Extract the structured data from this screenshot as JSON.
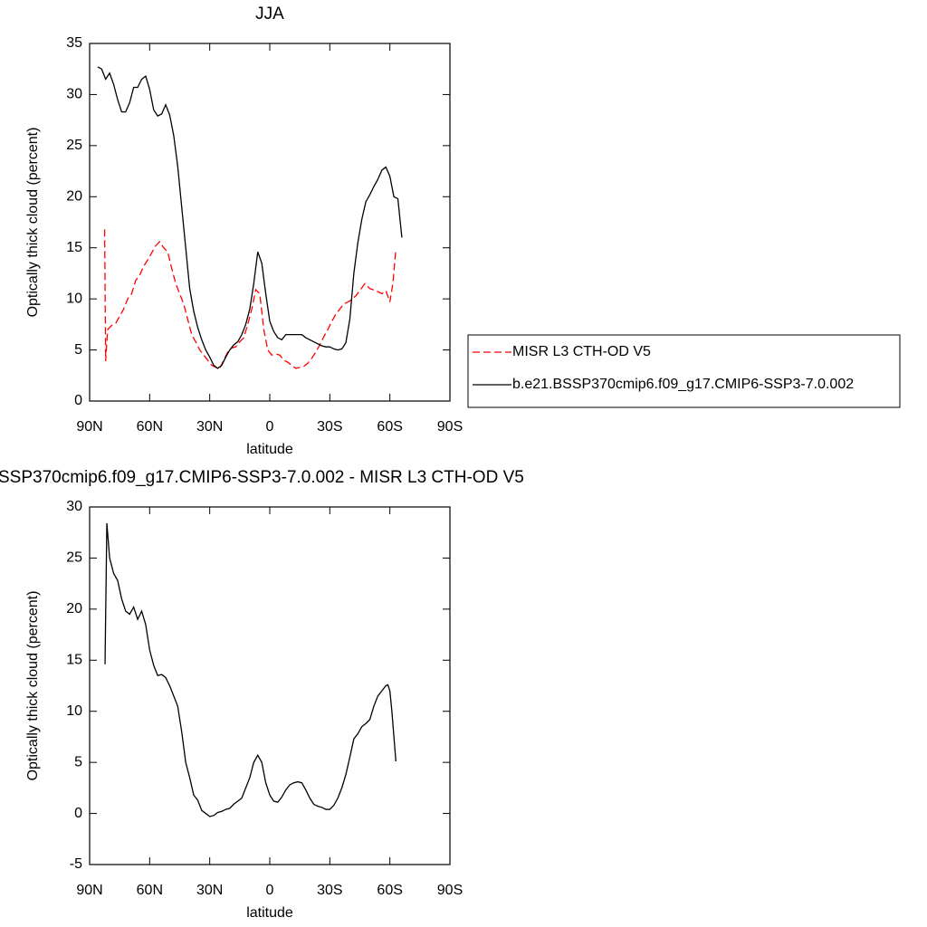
{
  "chart_data": [
    {
      "type": "line",
      "title": "JJA",
      "x_label": "latitude",
      "y_label": "Optically thick cloud (percent)",
      "xlim": [
        90,
        -90
      ],
      "xticks": [
        {
          "value": 90,
          "label": "90N"
        },
        {
          "value": 60,
          "label": "60N"
        },
        {
          "value": 30,
          "label": "30N"
        },
        0,
        {
          "value": -30,
          "label": "30S"
        },
        {
          "value": -60,
          "label": "60S"
        },
        {
          "value": -90,
          "label": "90S"
        }
      ],
      "ylim": [
        0,
        35
      ],
      "yticks": [
        0,
        5,
        10,
        15,
        20,
        25,
        30,
        35
      ],
      "legend": "right",
      "series": [
        {
          "name": "MISR L3 CTH-OD V5",
          "color": "#ff0000",
          "dash": true,
          "x": [
            82.5,
            82,
            81,
            79,
            77,
            75,
            73,
            71,
            69,
            67,
            65,
            63,
            61,
            59,
            57,
            55,
            53,
            51,
            49,
            47,
            45,
            43,
            41,
            39,
            37,
            35,
            33,
            31,
            29,
            27,
            25,
            23,
            21,
            19,
            17,
            15,
            13,
            11,
            9,
            7,
            5,
            3,
            1,
            -1,
            -3,
            -5,
            -7,
            -9,
            -11,
            -13,
            -15,
            -17,
            -19,
            -21,
            -23,
            -25,
            -27,
            -29,
            -31,
            -33,
            -35,
            -37,
            -40,
            -43,
            -45,
            -47.5,
            -50,
            -53,
            -56,
            -58,
            -60,
            -61.5,
            -63
          ],
          "values": [
            16.8,
            3.9,
            7.0,
            7.4,
            7.6,
            8.3,
            9.0,
            10.0,
            10.5,
            11.8,
            12.3,
            13.2,
            13.8,
            14.5,
            15.2,
            15.6,
            15.0,
            14.6,
            13.0,
            11.5,
            10.5,
            9.5,
            8.0,
            6.5,
            5.8,
            5.0,
            4.5,
            4.0,
            3.5,
            3.3,
            3.2,
            4.0,
            4.8,
            5.2,
            5.3,
            5.8,
            6.2,
            7.5,
            9.0,
            10.9,
            10.5,
            7.0,
            5.0,
            4.5,
            4.6,
            4.5,
            4.0,
            3.8,
            3.5,
            3.2,
            3.3,
            3.4,
            3.7,
            4.2,
            4.8,
            5.5,
            6.3,
            7.0,
            7.8,
            8.5,
            9.0,
            9.5,
            9.8,
            10.3,
            10.8,
            11.5,
            11.0,
            10.8,
            10.5,
            10.8,
            9.7,
            11.5,
            14.9
          ]
        },
        {
          "name": "b.e21.BSSP370cmip6.f09_g17.CMIP6-SSP3-7.0.002",
          "color": "#000000",
          "dash": false,
          "x": [
            86,
            84,
            82,
            80,
            78,
            76,
            74,
            72,
            70,
            68,
            66,
            64,
            62,
            60,
            58,
            56,
            54,
            52,
            50,
            48,
            46,
            44,
            42,
            40,
            38,
            36,
            34,
            32,
            30,
            28,
            26,
            24,
            22,
            20,
            18,
            16,
            14,
            12,
            10,
            8,
            6,
            4,
            2,
            0,
            -2,
            -4,
            -6,
            -8,
            -10,
            -12,
            -14,
            -16,
            -18,
            -20,
            -22,
            -24,
            -26,
            -28,
            -30,
            -32,
            -34,
            -36,
            -38,
            -40,
            -42,
            -44,
            -46,
            -48,
            -50,
            -52,
            -54,
            -56,
            -58,
            -60,
            -62,
            -64,
            -66
          ],
          "values": [
            32.7,
            32.5,
            31.5,
            32.1,
            31.0,
            29.5,
            28.3,
            28.3,
            29.2,
            30.7,
            30.7,
            31.5,
            31.8,
            30.5,
            28.5,
            27.9,
            28.1,
            29.0,
            28.0,
            26.0,
            23.0,
            19.0,
            15.0,
            11.0,
            8.8,
            7.2,
            6.0,
            5.0,
            4.3,
            3.5,
            3.2,
            3.5,
            4.3,
            5.0,
            5.5,
            5.8,
            6.5,
            7.5,
            9.0,
            11.5,
            14.6,
            13.5,
            10.5,
            7.8,
            6.8,
            6.2,
            6.0,
            6.5,
            6.5,
            6.5,
            6.5,
            6.5,
            6.2,
            6.0,
            5.8,
            5.6,
            5.4,
            5.3,
            5.3,
            5.1,
            5.0,
            5.1,
            5.7,
            8.0,
            12.5,
            15.5,
            17.8,
            19.5,
            20.2,
            21.0,
            21.7,
            22.6,
            22.9,
            22.0,
            20.0,
            19.8,
            16.0
          ]
        }
      ]
    },
    {
      "type": "line",
      "title": "SSP370cmip6.f09_g17.CMIP6-SSP3-7.0.002 - MISR L3 CTH-OD V5",
      "x_label": "latitude",
      "y_label": "Optically thick cloud (percent)",
      "xlim": [
        90,
        -90
      ],
      "xticks": [
        {
          "value": 90,
          "label": "90N"
        },
        {
          "value": 60,
          "label": "60N"
        },
        {
          "value": 30,
          "label": "30N"
        },
        0,
        {
          "value": -30,
          "label": "30S"
        },
        {
          "value": -60,
          "label": "60S"
        },
        {
          "value": -90,
          "label": "90S"
        }
      ],
      "ylim": [
        -5,
        30
      ],
      "yticks": [
        -5,
        0,
        5,
        10,
        15,
        20,
        25,
        30
      ],
      "series": [
        {
          "color": "#000000",
          "dash": false,
          "x": [
            82.3,
            81.4,
            80,
            78,
            76,
            74,
            72,
            70,
            68,
            66,
            64,
            62,
            60,
            58,
            56,
            54,
            52,
            50,
            48,
            46,
            44,
            42,
            40,
            38,
            36,
            34,
            32,
            30,
            28,
            26,
            24,
            22,
            20,
            18,
            16,
            14,
            12,
            10,
            8,
            6,
            4,
            2,
            0,
            -2,
            -4,
            -6,
            -8,
            -10,
            -12,
            -14,
            -16,
            -18,
            -20,
            -22,
            -24,
            -26,
            -28,
            -30,
            -32,
            -34,
            -36,
            -38,
            -40,
            -42,
            -44,
            -46,
            -48,
            -50,
            -52,
            -54,
            -56,
            -58,
            -59,
            -60,
            -61,
            -63
          ],
          "values": [
            14.6,
            28.4,
            25.0,
            23.5,
            22.8,
            21.0,
            19.8,
            19.5,
            20.2,
            19.0,
            19.8,
            18.5,
            16.0,
            14.5,
            13.5,
            13.6,
            13.3,
            12.5,
            11.5,
            10.5,
            8.0,
            5.0,
            3.5,
            1.8,
            1.3,
            0.3,
            0.0,
            -0.3,
            -0.2,
            0.1,
            0.2,
            0.4,
            0.5,
            0.9,
            1.2,
            1.5,
            2.5,
            3.5,
            5.0,
            5.7,
            5.0,
            3.0,
            1.8,
            1.2,
            1.1,
            1.6,
            2.3,
            2.8,
            3.0,
            3.1,
            3.0,
            2.3,
            1.5,
            0.9,
            0.7,
            0.6,
            0.4,
            0.4,
            0.8,
            1.5,
            2.5,
            3.8,
            5.5,
            7.3,
            7.8,
            8.5,
            8.8,
            9.2,
            10.5,
            11.5,
            12.0,
            12.5,
            12.6,
            12.0,
            10.0,
            5.1
          ]
        }
      ]
    }
  ]
}
